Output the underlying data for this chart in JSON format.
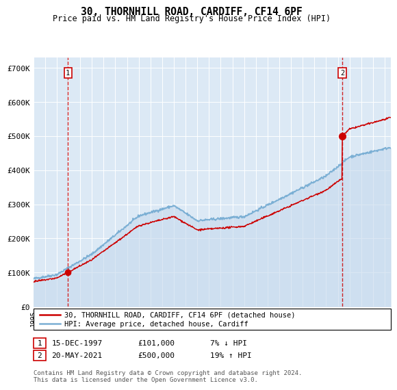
{
  "title": "30, THORNHILL ROAD, CARDIFF, CF14 6PF",
  "subtitle": "Price paid vs. HM Land Registry's House Price Index (HPI)",
  "property_label": "30, THORNHILL ROAD, CARDIFF, CF14 6PF (detached house)",
  "hpi_label": "HPI: Average price, detached house, Cardiff",
  "sale1_date": "15-DEC-1997",
  "sale1_price": 101000,
  "sale1_note": "7% ↓ HPI",
  "sale2_date": "20-MAY-2021",
  "sale2_price": 500000,
  "sale2_note": "19% ↑ HPI",
  "sale1_year": 1997.96,
  "sale2_year": 2021.38,
  "ylim": [
    0,
    730000
  ],
  "xlim_start": 1995.0,
  "xlim_end": 2025.5,
  "property_color": "#cc0000",
  "hpi_color": "#7bafd4",
  "hpi_fill_color": "#c5d9ed",
  "bg_color": "#dce9f5",
  "footer": "Contains HM Land Registry data © Crown copyright and database right 2024.\nThis data is licensed under the Open Government Licence v3.0.",
  "yticks": [
    0,
    100000,
    200000,
    300000,
    400000,
    500000,
    600000,
    700000
  ],
  "ytick_labels": [
    "£0",
    "£100K",
    "£200K",
    "£300K",
    "£400K",
    "£500K",
    "£600K",
    "£700K"
  ]
}
